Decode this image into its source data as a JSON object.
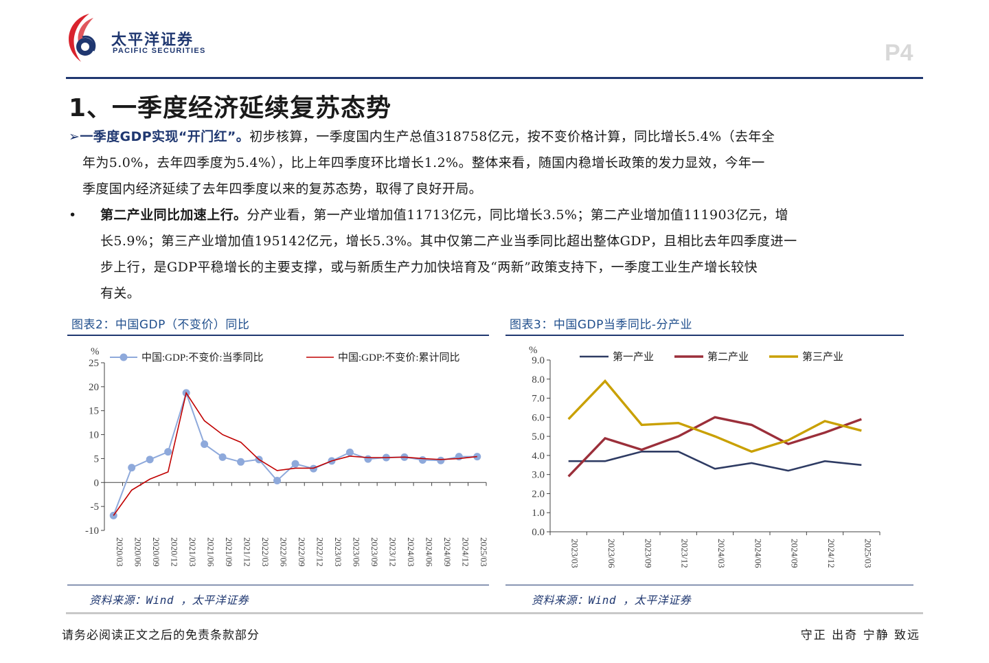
{
  "header": {
    "brand_cn": "太平洋证券",
    "brand_en": "PACIFIC SECURITIES",
    "page_number": "P4",
    "brand_color": "#1f3770",
    "logo_accent": "#d9232d"
  },
  "section_title": "1、一季度经济延续复苏态势",
  "para1": {
    "marker": "➢",
    "lead": "一季度GDP实现“开门红”。",
    "line1": "初步核算，一季度国内生产总值318758亿元，按不变价格计算，同比增长5.4%（去年全",
    "line2": "年为5.0%，去年四季度为5.4%），比上年四季度环比增长1.2%。整体来看，随国内稳增长政策的发力显效，今年一",
    "line3": "季度国内经济延续了去年四季度以来的复苏态势，取得了良好开局。"
  },
  "para2": {
    "marker": "•",
    "lead": "第二产业同比加速上行。",
    "line1": "分产业看，第一产业增加值11713亿元，同比增长3.5%；第二产业增加值111903亿元，增",
    "line2": "长5.9%；第三产业增加值195142亿元，增长5.3%。其中仅第二产业当季同比超出整体GDP，且相比去年四季度进一",
    "line3": "步上行，是GDP平稳增长的主要支撑，或与新质生产力加快培育及“两新”政策支持下，一季度工业生产增长较快",
    "line4": "有关。"
  },
  "figure2": {
    "title": "图表2：中国GDP（不变价）同比",
    "source": "资料来源：Wind ，太平洋证券"
  },
  "figure3": {
    "title": "图表3：中国GDP当季同比-分产业",
    "source": "资料来源：Wind ，太平洋证券"
  },
  "footer": {
    "disclaimer": "请务必阅读正文之后的免责条款部分",
    "motto": "守正 出奇 宁静 致远"
  },
  "chart_data": [
    {
      "type": "line",
      "ylabel": "%",
      "ylim": [
        -10,
        25
      ],
      "yticks": [
        -10,
        -5,
        0,
        5,
        10,
        15,
        20,
        25
      ],
      "legend_position": "top",
      "categories": [
        "2020/03",
        "2020/06",
        "2020/09",
        "2020/12",
        "2021/03",
        "2021/06",
        "2021/09",
        "2021/12",
        "2022/03",
        "2022/06",
        "2022/09",
        "2022/12",
        "2023/03",
        "2023/06",
        "2023/09",
        "2023/12",
        "2024/03",
        "2024/06",
        "2024/09",
        "2024/12",
        "2025/03"
      ],
      "series": [
        {
          "name": "中国:GDP:不变价:当季同比",
          "color": "#8ea9db",
          "marker": "circle",
          "values": [
            -6.9,
            3.1,
            4.8,
            6.4,
            18.7,
            8.0,
            5.3,
            4.3,
            4.8,
            0.4,
            3.9,
            2.9,
            4.5,
            6.3,
            4.9,
            5.2,
            5.3,
            4.7,
            4.6,
            5.4,
            5.4
          ]
        },
        {
          "name": "中国:GDP:不变价:累计同比",
          "color": "#c00000",
          "values": [
            -6.9,
            -1.6,
            0.7,
            2.2,
            18.7,
            12.9,
            10.0,
            8.4,
            4.8,
            2.5,
            3.0,
            3.0,
            4.5,
            5.5,
            5.2,
            5.2,
            5.3,
            5.0,
            4.8,
            5.0,
            5.4
          ]
        }
      ]
    },
    {
      "type": "line",
      "ylabel": "%",
      "ylim": [
        0,
        9
      ],
      "yticks": [
        "0.0",
        "1.0",
        "2.0",
        "3.0",
        "4.0",
        "5.0",
        "6.0",
        "7.0",
        "8.0",
        "9.0"
      ],
      "legend_position": "top",
      "categories": [
        "2023/03",
        "2023/06",
        "2023/09",
        "2023/12",
        "2024/03",
        "2024/06",
        "2024/09",
        "2024/12",
        "2025/03"
      ],
      "series": [
        {
          "name": "第一产业",
          "color": "#2e3b63",
          "values": [
            3.7,
            3.7,
            4.2,
            4.2,
            3.3,
            3.6,
            3.2,
            3.7,
            3.5
          ]
        },
        {
          "name": "第二产业",
          "color": "#9b2f3a",
          "values": [
            2.9,
            4.9,
            4.3,
            5.0,
            6.0,
            5.6,
            4.6,
            5.2,
            5.9
          ]
        },
        {
          "name": "第三产业",
          "color": "#c9a000",
          "values": [
            5.9,
            7.9,
            5.6,
            5.7,
            5.0,
            4.2,
            4.8,
            5.8,
            5.3
          ]
        }
      ]
    }
  ]
}
